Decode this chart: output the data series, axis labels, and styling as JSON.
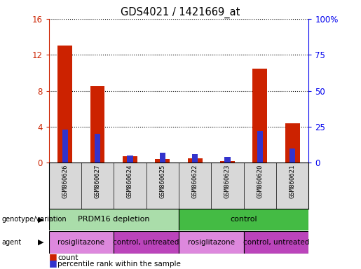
{
  "title": "GDS4021 / 1421669_at",
  "samples": [
    "GSM860626",
    "GSM860627",
    "GSM860624",
    "GSM860625",
    "GSM860622",
    "GSM860623",
    "GSM860620",
    "GSM860621"
  ],
  "count_values": [
    13.0,
    8.5,
    0.7,
    0.4,
    0.5,
    0.2,
    10.5,
    4.4
  ],
  "percentile_values": [
    23,
    20,
    5,
    7,
    6,
    4,
    22,
    10
  ],
  "ylim_left": [
    0,
    16
  ],
  "ylim_right": [
    0,
    100
  ],
  "yticks_left": [
    0,
    4,
    8,
    12,
    16
  ],
  "yticks_right": [
    0,
    25,
    50,
    75,
    100
  ],
  "yticklabels_right": [
    "0",
    "25",
    "50",
    "75",
    "100%"
  ],
  "red_color": "#cc2200",
  "blue_color": "#3333cc",
  "bg_color": "#d8d8d8",
  "plot_bg": "#ffffff",
  "genotype_groups": [
    {
      "label": "PRDM16 depletion",
      "start": 0,
      "end": 4,
      "color": "#aaddaa"
    },
    {
      "label": "control",
      "start": 4,
      "end": 8,
      "color": "#44bb44"
    }
  ],
  "agent_groups": [
    {
      "label": "rosiglitazone",
      "start": 0,
      "end": 2,
      "color": "#dd88dd"
    },
    {
      "label": "control, untreated",
      "start": 2,
      "end": 4,
      "color": "#bb44bb"
    },
    {
      "label": "rosiglitazone",
      "start": 4,
      "end": 6,
      "color": "#dd88dd"
    },
    {
      "label": "control, untreated",
      "start": 6,
      "end": 8,
      "color": "#bb44bb"
    }
  ],
  "tick_color_left": "#cc2200",
  "tick_color_right": "#0000ee"
}
